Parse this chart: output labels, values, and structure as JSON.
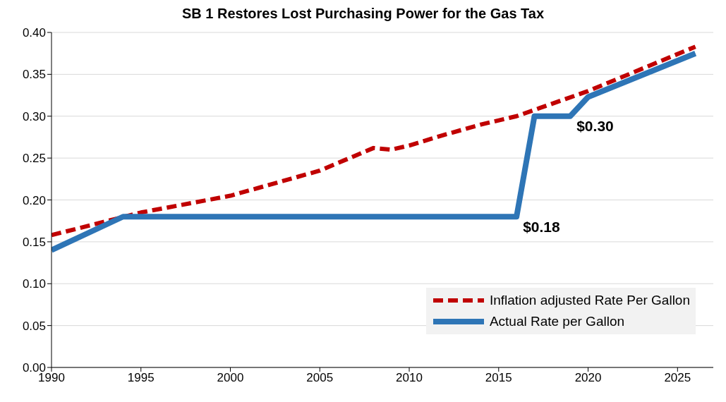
{
  "chart_data": {
    "type": "line",
    "title": "SB 1 Restores Lost Purchasing Power for the Gas Tax",
    "series": [
      {
        "name": "Inflation adjusted Rate Per Gallon",
        "color": "#c00000",
        "line_style": "dashed",
        "x": [
          1990,
          1995,
          2000,
          2005,
          2008,
          2009,
          2010,
          2012,
          2014,
          2016,
          2020,
          2026
        ],
        "values": [
          0.158,
          0.185,
          0.205,
          0.235,
          0.262,
          0.26,
          0.265,
          0.278,
          0.29,
          0.3,
          0.33,
          0.383
        ]
      },
      {
        "name": "Actual Rate per Gallon",
        "color": "#2e75b6",
        "line_style": "solid",
        "x": [
          1990,
          1994,
          2016,
          2017,
          2019,
          2020,
          2026
        ],
        "values": [
          0.14,
          0.18,
          0.18,
          0.3,
          0.3,
          0.323,
          0.375
        ]
      }
    ],
    "xlim": [
      1990,
      2027
    ],
    "xticks": [
      1990,
      1995,
      2000,
      2005,
      2010,
      2015,
      2020,
      2025
    ],
    "ylim": [
      0,
      0.4
    ],
    "yticks": [
      {
        "value": 0,
        "label": "0.00"
      },
      {
        "value": 0.05,
        "label": "0.05"
      },
      {
        "value": 0.1,
        "label": "0.10"
      },
      {
        "value": 0.15,
        "label": "0.15"
      },
      {
        "value": 0.2,
        "label": "0.20"
      },
      {
        "value": 0.25,
        "label": "0.25"
      },
      {
        "value": 0.3,
        "label": "0.30"
      },
      {
        "value": 0.35,
        "label": "0.35"
      },
      {
        "value": 0.4,
        "label": "0.40"
      }
    ],
    "grid": "y",
    "legend": "bottom right",
    "marker": "none",
    "annotations": [
      {
        "text": "$0.18",
        "x": 2016,
        "y": 0.18
      },
      {
        "text": "$0.30",
        "x": 2019,
        "y": 0.3
      }
    ]
  }
}
